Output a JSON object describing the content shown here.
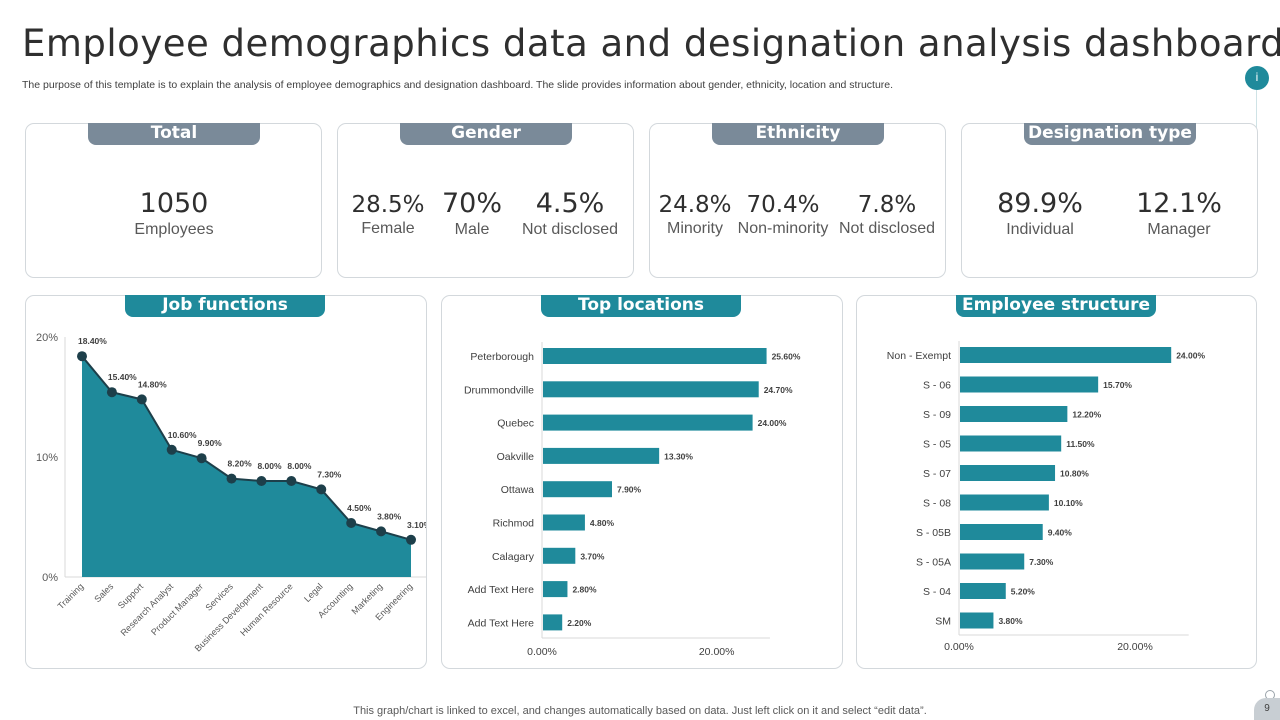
{
  "title": "Employee demographics data and designation analysis dashboard",
  "subtitle": "The purpose of this template is to explain the analysis of employee demographics and designation dashboard. The slide provides information about gender, ethnicity, location and structure.",
  "colors": {
    "accent": "#1f8a9b",
    "tab_gray": "#7a8a99",
    "text_dark": "#2f2f2f"
  },
  "cards": {
    "total": {
      "tab": "Total",
      "stats": [
        {
          "value": "1050",
          "label": "Employees"
        }
      ]
    },
    "gender": {
      "tab": "Gender",
      "stats": [
        {
          "value": "28.5%",
          "label": "Female"
        },
        {
          "value": "70%",
          "label": "Male"
        },
        {
          "value": "4.5%",
          "label": "Not disclosed"
        }
      ]
    },
    "ethnicity": {
      "tab": "Ethnicity",
      "stats": [
        {
          "value": "24.8%",
          "label": "Minority"
        },
        {
          "value": "70.4%",
          "label": "Non-minority"
        },
        {
          "value": "7.8%",
          "label": "Not disclosed"
        }
      ]
    },
    "designation": {
      "tab": "Designation type",
      "stats": [
        {
          "value": "89.9%",
          "label": "Individual"
        },
        {
          "value": "12.1%",
          "label": "Manager"
        }
      ]
    }
  },
  "chart_data": [
    {
      "type": "area",
      "title": "Job functions",
      "categories": [
        "Training",
        "Sales",
        "Support",
        "Research Analyst",
        "Product Manager",
        "Services",
        "Business Development",
        "Human Resource",
        "Legal",
        "Accounting",
        "Marketing",
        "Engineering"
      ],
      "values": [
        18.4,
        15.4,
        14.8,
        10.6,
        9.9,
        8.2,
        8.0,
        8.0,
        7.3,
        4.5,
        3.8,
        3.1
      ],
      "data_labels": [
        "18.40%",
        "15.40%",
        "14.80%",
        "10.60%",
        "9.90%",
        "8.20%",
        "8.00%",
        "8.00%",
        "7.30%",
        "4.50%",
        "3.80%",
        "3.10%"
      ],
      "ylim": [
        0,
        20
      ],
      "yticks": [
        "0%",
        "10%",
        "20%"
      ]
    },
    {
      "type": "bar",
      "orientation": "horizontal",
      "title": "Top locations",
      "categories": [
        "Peterborough",
        "Drummondville",
        "Quebec",
        "Oakville",
        "Ottawa",
        "Richmod",
        "Calagary",
        "Add Text Here",
        "Add Text Here"
      ],
      "values": [
        25.6,
        24.7,
        24.0,
        13.3,
        7.9,
        4.8,
        3.7,
        2.8,
        2.2
      ],
      "data_labels": [
        "25.60%",
        "24.70%",
        "24.00%",
        "13.30%",
        "7.90%",
        "4.80%",
        "3.70%",
        "2.80%",
        "2.20%"
      ],
      "xlim": [
        0,
        30
      ],
      "xticks": [
        {
          "value": 0,
          "label": "0.00%"
        },
        {
          "value": 20,
          "label": "20.00%"
        }
      ]
    },
    {
      "type": "bar",
      "orientation": "horizontal",
      "title": "Employee structure",
      "categories": [
        "Non - Exempt",
        "S - 06",
        "S - 09",
        "S - 05",
        "S - 07",
        "S - 08",
        "S - 05B",
        "S - 05A",
        "S - 04",
        "SM"
      ],
      "values": [
        24.0,
        15.7,
        12.2,
        11.5,
        10.8,
        10.1,
        9.4,
        7.3,
        5.2,
        3.8
      ],
      "data_labels": [
        "24.00%",
        "15.70%",
        "12.20%",
        "11.50%",
        "10.80%",
        "10.10%",
        "9.40%",
        "7.30%",
        "5.20%",
        "3.80%"
      ],
      "xlim": [
        0,
        30
      ],
      "xticks": [
        {
          "value": 0,
          "label": "0.00%"
        },
        {
          "value": 20,
          "label": "20.00%"
        }
      ]
    }
  ],
  "footer": "This graph/chart is linked to excel,  and changes automatically based on data. Just left click on it and select “edit data”.",
  "page_number": "9",
  "info_icon": "i"
}
